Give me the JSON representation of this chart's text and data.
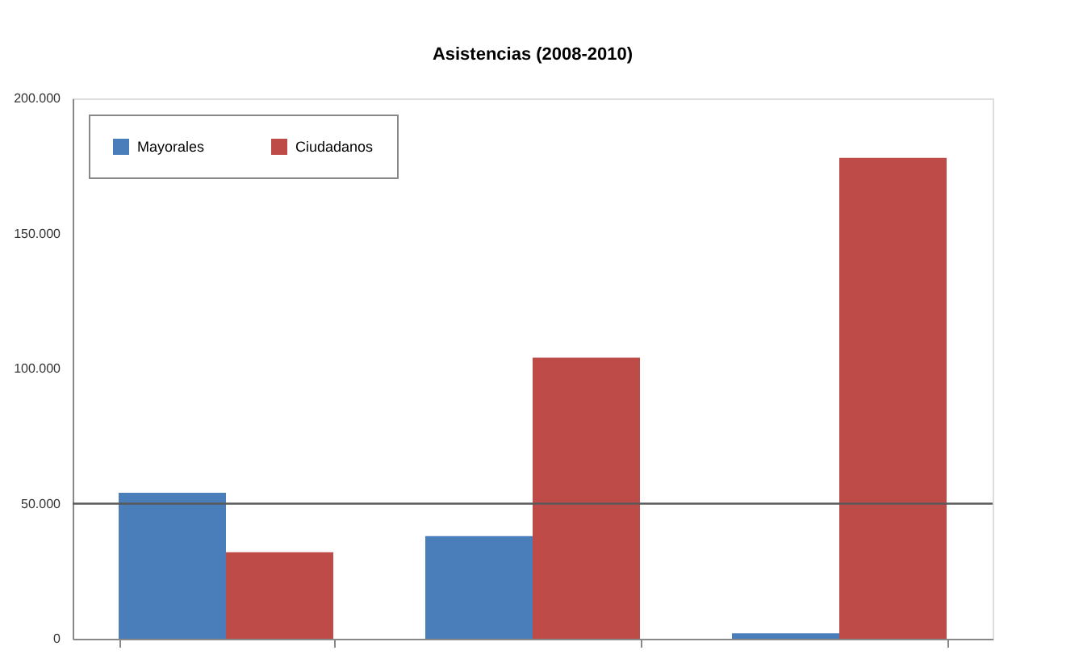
{
  "chart_data": {
    "type": "bar",
    "title": "Asistencias (2008-2010)",
    "categories": [
      null,
      null,
      null
    ],
    "series": [
      {
        "name": "Mayorales",
        "color": "#4a7ebb",
        "values": [
          54000,
          38000,
          2000
        ]
      },
      {
        "name": "Ciudadanos",
        "color": "#be4b48",
        "values": [
          32000,
          104000,
          178000
        ]
      }
    ],
    "ylim": [
      0,
      200000
    ],
    "yticks": [
      {
        "value": 0,
        "label": "0"
      },
      {
        "value": 50000,
        "label": "50.000"
      },
      {
        "value": 100000,
        "label": "100.000"
      },
      {
        "value": 150000,
        "label": "150.000"
      },
      {
        "value": 200000,
        "label": "200.000"
      }
    ],
    "ref_lines": [
      {
        "axis": "y",
        "value": 50000,
        "label": null,
        "color": "#595959"
      }
    ],
    "grid": false,
    "legend": "top left"
  }
}
